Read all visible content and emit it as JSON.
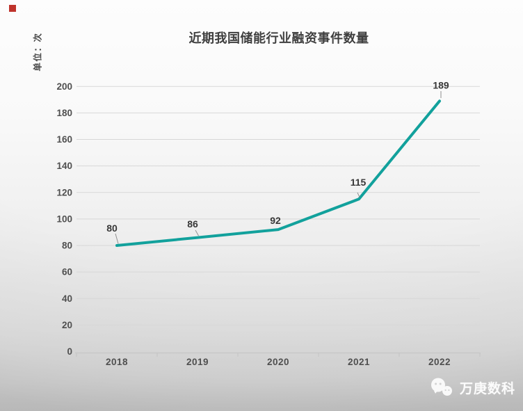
{
  "page": {
    "title": "近期我国储能行业融资事件数量",
    "unit_label": "单位：次"
  },
  "watermark": {
    "brand": "万庚数科",
    "icon": "chat-bubbles-icon"
  },
  "colors": {
    "line": "#12a19c",
    "grid": "#d7d7d7",
    "axis": "#c6c6c6",
    "tick_text": "#4f4f4f",
    "data_label_text": "#383838",
    "leader_line": "#8f8f8f",
    "title_text": "#3f3f3f",
    "red_marker": "#bf332c",
    "watermark_text": "#fbfbfb"
  },
  "chart_data": {
    "type": "line",
    "title": "近期我国储能行业融资事件数量",
    "ylabel": "单位：次",
    "xlabel": "",
    "categories": [
      "2018",
      "2019",
      "2020",
      "2021",
      "2022"
    ],
    "values": [
      80,
      86,
      92,
      115,
      189
    ],
    "data_labels": [
      "80",
      "86",
      "92",
      "115",
      "189"
    ],
    "ylim": [
      0,
      200
    ],
    "ytick_step": 20,
    "grid": "horizontal",
    "legend": "none"
  }
}
